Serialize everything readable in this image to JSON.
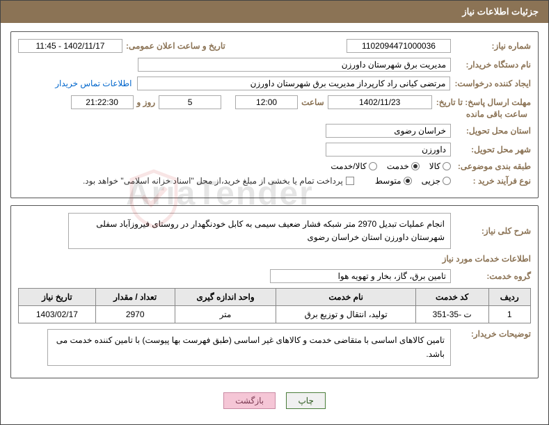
{
  "header": {
    "title": "جزئیات اطلاعات نیاز"
  },
  "f1": {
    "need_no_lbl": "شماره نیاز:",
    "need_no": "1102094471000036",
    "ann_datetime_lbl": "تاریخ و ساعت اعلان عمومی:",
    "ann_datetime": "1402/11/17 - 11:45",
    "buyer_org_lbl": "نام دستگاه خریدار:",
    "buyer_org": "مدیریت برق شهرستان داورزن",
    "requester_lbl": "ایجاد کننده درخواست:",
    "requester": "مرتضی کیانی راد کارپرداز مدیریت برق شهرستان داورزن",
    "contact_link": "اطلاعات تماس خریدار",
    "deadline_lbl": "مهلت ارسال پاسخ:",
    "until_lbl": "تا تاریخ:",
    "deadline_date": "1402/11/23",
    "time_lbl": "ساعت",
    "deadline_time": "12:00",
    "days_val": "5",
    "days_and": "روز و",
    "remain_time": "21:22:30",
    "remain_lbl": "ساعت باقی مانده",
    "province_lbl": "استان محل تحویل:",
    "province": "خراسان رضوی",
    "city_lbl": "شهر محل تحویل:",
    "city": "داورزن",
    "cat_lbl": "طبقه بندی موضوعی:",
    "cat_opts": [
      "کالا",
      "خدمت",
      "کالا/خدمت"
    ],
    "cat_sel": 1,
    "ptype_lbl": "نوع فرآیند خرید :",
    "ptype_opts": [
      "جزیی",
      "متوسط"
    ],
    "ptype_sel": 1,
    "pay_note": "پرداخت تمام یا بخشی از مبلغ خرید،از محل \"اسناد خزانه اسلامی\" خواهد بود."
  },
  "f2": {
    "summary_lbl": "شرح کلی نیاز:",
    "summary": "انجام عملیات تبدیل 2970 متر شبکه فشار ضعیف سیمی به کابل خودنگهدار در روستای فیروزآباد سفلی شهرستان داورزن استان خراسان رضوی",
    "services_title": "اطلاعات خدمات مورد نیاز",
    "group_lbl": "گروه خدمت:",
    "group": "تامین برق، گاز، بخار و تهویه هوا",
    "cols": [
      "ردیف",
      "کد خدمت",
      "نام خدمت",
      "واحد اندازه گیری",
      "تعداد / مقدار",
      "تاریخ نیاز"
    ],
    "rows": [
      [
        "1",
        "ت -35-351",
        "تولید، انتقال و توزیع برق",
        "متر",
        "2970",
        "1403/02/17"
      ]
    ],
    "buyer_note_lbl": "توضیحات خریدار:",
    "buyer_note": "تامین کالاهای اساسی با متقاضی خدمت و کالاهای غیر اساسی (طبق فهرست بها پیوست) با تامین کننده خدمت می باشد."
  },
  "btns": {
    "print": "چاپ",
    "back": "بازگشت"
  },
  "wm": "AriaTender"
}
